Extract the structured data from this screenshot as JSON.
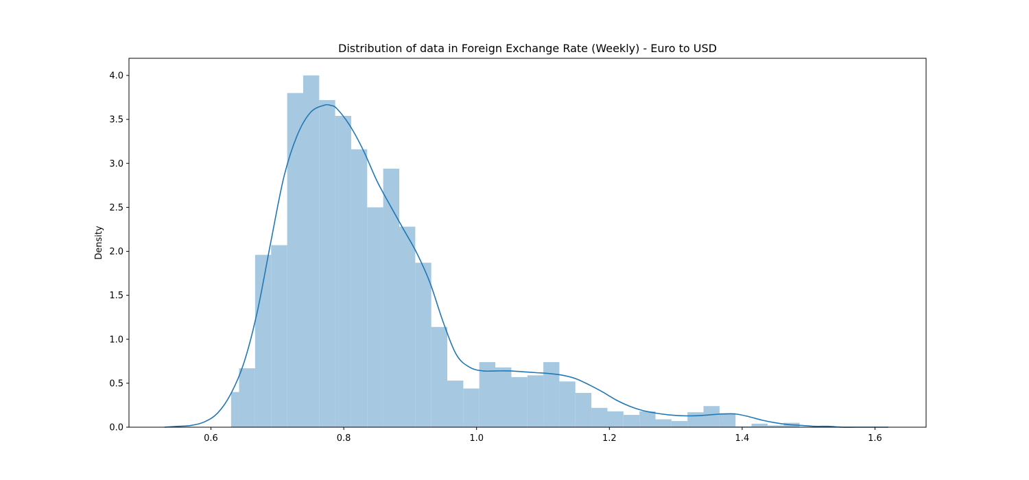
{
  "chart_data": {
    "type": "bar",
    "title": "Distribution of data in Foreign Exchange Rate (Weekly) - Euro to USD",
    "xlabel": "",
    "ylabel": "Density",
    "xlim": [
      0.5,
      1.65
    ],
    "ylim": [
      0,
      4.2
    ],
    "xticks": [
      0.6,
      0.8,
      1.0,
      1.2,
      1.4,
      1.6
    ],
    "xtick_labels": [
      "0.6",
      "0.8",
      "1.0",
      "1.2",
      "1.4",
      "1.6"
    ],
    "yticks": [
      0.0,
      0.5,
      1.0,
      1.5,
      2.0,
      2.5,
      3.0,
      3.5,
      4.0
    ],
    "ytick_labels": [
      "0.0",
      "0.5",
      "1.0",
      "1.5",
      "2.0",
      "2.5",
      "3.0",
      "3.5",
      "4.0"
    ],
    "grid": false,
    "histogram": {
      "color": "#a6c8e0",
      "bin_edges": [
        0.6303,
        0.6424,
        0.6545,
        0.6665,
        0.6786,
        0.6906,
        0.7027,
        0.7148,
        0.7268,
        0.7389,
        0.7509,
        0.763,
        0.775,
        0.7871,
        0.7992,
        0.8112,
        0.8233,
        0.8353,
        0.8474,
        0.8594,
        0.8715,
        0.8836,
        0.8956,
        0.9077,
        0.9197,
        0.9318,
        0.9438,
        0.9559,
        0.968,
        0.98,
        0.9921,
        1.0041,
        1.0162,
        1.0282,
        1.0403,
        1.0524,
        1.0644,
        1.0765,
        1.0885,
        1.1006,
        1.1127,
        1.1247,
        1.1368,
        1.1488,
        1.1609,
        1.1729,
        1.185,
        1.1971,
        1.2091,
        1.2212,
        1.2332,
        1.2453,
        1.2574,
        1.2694,
        1.2815,
        1.2935,
        1.3056,
        1.3176,
        1.3297,
        1.3418,
        1.3538,
        1.3659,
        1.3779,
        1.39,
        1.4021,
        1.4141,
        1.4262,
        1.4382,
        1.4503,
        1.4623,
        1.4744,
        1.4865,
        1.4985,
        1.5106,
        1.5226
      ],
      "bin_width": 0.0604,
      "bins": [
        {
          "x0": 0.6303,
          "x1": 0.6424,
          "y": 0.4
        },
        {
          "x0": 0.6424,
          "x1": 0.6665,
          "y": 0.67
        },
        {
          "x0": 0.6665,
          "x1": 0.6906,
          "y": 1.96
        },
        {
          "x0": 0.6906,
          "x1": 0.7148,
          "y": 2.07
        },
        {
          "x0": 0.7148,
          "x1": 0.7389,
          "y": 3.8
        },
        {
          "x0": 0.7389,
          "x1": 0.763,
          "y": 4.0
        },
        {
          "x0": 0.763,
          "x1": 0.7871,
          "y": 3.72
        },
        {
          "x0": 0.7871,
          "x1": 0.8112,
          "y": 3.54
        },
        {
          "x0": 0.8112,
          "x1": 0.8353,
          "y": 3.16
        },
        {
          "x0": 0.8353,
          "x1": 0.8594,
          "y": 2.5
        },
        {
          "x0": 0.8594,
          "x1": 0.8836,
          "y": 2.94
        },
        {
          "x0": 0.8836,
          "x1": 0.9077,
          "y": 2.28
        },
        {
          "x0": 0.9077,
          "x1": 0.9318,
          "y": 1.87
        },
        {
          "x0": 0.9318,
          "x1": 0.9559,
          "y": 1.14
        },
        {
          "x0": 0.9559,
          "x1": 0.98,
          "y": 0.53
        },
        {
          "x0": 0.98,
          "x1": 1.0041,
          "y": 0.44
        },
        {
          "x0": 1.0041,
          "x1": 1.0282,
          "y": 0.74
        },
        {
          "x0": 1.0282,
          "x1": 1.0524,
          "y": 0.68
        },
        {
          "x0": 1.0524,
          "x1": 1.0765,
          "y": 0.57
        },
        {
          "x0": 1.0765,
          "x1": 1.1006,
          "y": 0.59
        },
        {
          "x0": 1.1006,
          "x1": 1.1247,
          "y": 0.74
        },
        {
          "x0": 1.1247,
          "x1": 1.1488,
          "y": 0.52
        },
        {
          "x0": 1.1488,
          "x1": 1.1729,
          "y": 0.39
        },
        {
          "x0": 1.1729,
          "x1": 1.1971,
          "y": 0.22
        },
        {
          "x0": 1.1971,
          "x1": 1.2212,
          "y": 0.18
        },
        {
          "x0": 1.2212,
          "x1": 1.2453,
          "y": 0.14
        },
        {
          "x0": 1.2453,
          "x1": 1.2694,
          "y": 0.18
        },
        {
          "x0": 1.2694,
          "x1": 1.2935,
          "y": 0.09
        },
        {
          "x0": 1.2935,
          "x1": 1.3176,
          "y": 0.07
        },
        {
          "x0": 1.3176,
          "x1": 1.3418,
          "y": 0.17
        },
        {
          "x0": 1.3418,
          "x1": 1.3659,
          "y": 0.24
        },
        {
          "x0": 1.3659,
          "x1": 1.39,
          "y": 0.16
        },
        {
          "x0": 1.39,
          "x1": 1.4141,
          "y": 0.01
        },
        {
          "x0": 1.4141,
          "x1": 1.4382,
          "y": 0.04
        },
        {
          "x0": 1.4382,
          "x1": 1.4623,
          "y": 0.02
        },
        {
          "x0": 1.4623,
          "x1": 1.4865,
          "y": 0.05
        }
      ]
    },
    "kde": {
      "color": "#1f77b4",
      "x": [
        0.53,
        0.55,
        0.57,
        0.59,
        0.61,
        0.63,
        0.65,
        0.67,
        0.69,
        0.71,
        0.73,
        0.75,
        0.77,
        0.78,
        0.79,
        0.81,
        0.83,
        0.85,
        0.87,
        0.89,
        0.91,
        0.93,
        0.95,
        0.97,
        0.99,
        1.01,
        1.03,
        1.05,
        1.07,
        1.09,
        1.11,
        1.13,
        1.15,
        1.17,
        1.19,
        1.21,
        1.23,
        1.25,
        1.27,
        1.29,
        1.31,
        1.33,
        1.35,
        1.37,
        1.39,
        1.41,
        1.43,
        1.45,
        1.47,
        1.49,
        1.51,
        1.53,
        1.55,
        1.57,
        1.59,
        1.62
      ],
      "y": [
        0.0,
        0.01,
        0.02,
        0.06,
        0.16,
        0.38,
        0.74,
        1.32,
        2.1,
        2.85,
        3.32,
        3.58,
        3.66,
        3.66,
        3.62,
        3.42,
        3.14,
        2.8,
        2.52,
        2.25,
        1.98,
        1.64,
        1.19,
        0.82,
        0.68,
        0.64,
        0.64,
        0.64,
        0.63,
        0.62,
        0.61,
        0.59,
        0.55,
        0.48,
        0.4,
        0.31,
        0.24,
        0.19,
        0.16,
        0.14,
        0.13,
        0.13,
        0.14,
        0.15,
        0.15,
        0.12,
        0.08,
        0.05,
        0.03,
        0.02,
        0.01,
        0.01,
        0.0,
        0.0,
        0.0,
        0.0
      ]
    }
  }
}
